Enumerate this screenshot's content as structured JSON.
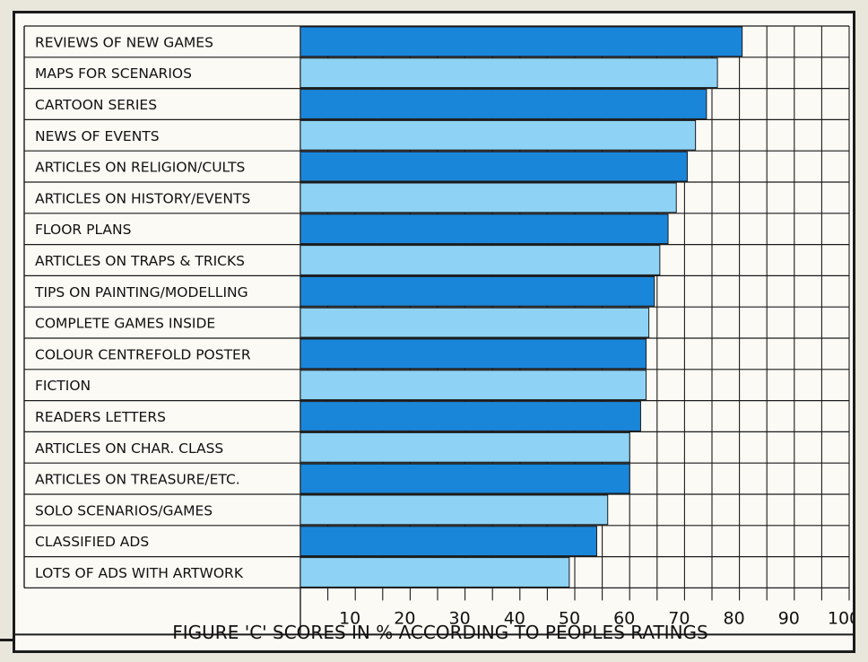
{
  "chart_data": {
    "type": "bar",
    "orientation": "horizontal",
    "categories": [
      "REVIEWS OF NEW GAMES",
      "MAPS FOR SCENARIOS",
      "CARTOON SERIES",
      "NEWS OF EVENTS",
      "ARTICLES ON RELIGION/CULTS",
      "ARTICLES ON HISTORY/EVENTS",
      "FLOOR PLANS",
      "ARTICLES ON TRAPS & TRICKS",
      "TIPS ON PAINTING/MODELLING",
      "COMPLETE GAMES INSIDE",
      "COLOUR CENTREFOLD POSTER",
      "FICTION",
      "READERS LETTERS",
      "ARTICLES ON CHAR. CLASS",
      "ARTICLES ON TREASURE/ETC.",
      "SOLO SCENARIOS/GAMES",
      "CLASSIFIED ADS",
      "LOTS OF ADS WITH ARTWORK"
    ],
    "values": [
      80.5,
      76,
      74,
      72,
      70.5,
      68.5,
      67,
      65.5,
      64.5,
      63.5,
      63,
      63,
      62,
      60,
      60,
      56,
      54,
      49
    ],
    "xlim": [
      0,
      100
    ],
    "xticks": [
      "10",
      "20",
      "30",
      "40",
      "50",
      "60",
      "70",
      "80",
      "90",
      "100"
    ],
    "grid": true,
    "caption": "FIGURE 'C' SCORES IN % ACCORDING TO PEOPLES RATINGS",
    "colors": {
      "dark": "#1a86da",
      "light": "#8ed3f5",
      "outline": "#1b1b1b"
    }
  }
}
